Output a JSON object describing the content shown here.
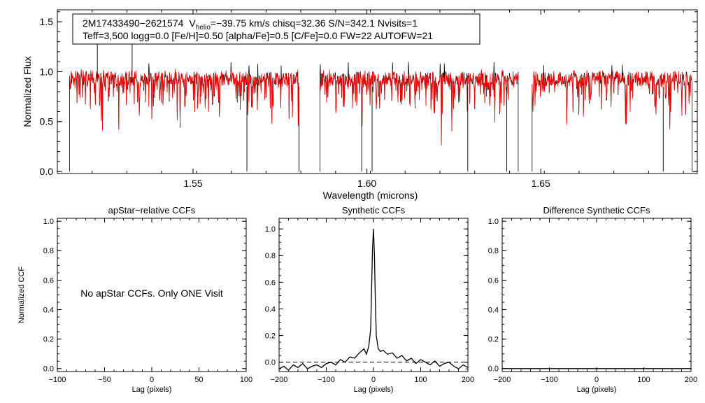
{
  "chart_data": [
    {
      "type": "line",
      "id": "spectrum",
      "xlabel": "Wavelength (microns)",
      "ylabel": "Normalized Flux",
      "xlim": [
        1.511,
        1.695
      ],
      "ylim": [
        -0.02,
        1.62
      ],
      "xticks": [
        1.55,
        1.6,
        1.65
      ],
      "xtick_labels": [
        "1.55",
        "1.60",
        "1.65"
      ],
      "yticks": [
        0.0,
        0.5,
        1.0,
        1.5
      ],
      "ytick_labels": [
        "0.0",
        "0.5",
        "1.0",
        "1.5"
      ],
      "detector_chips": [
        [
          1.5145,
          1.5805
        ],
        [
          1.5865,
          1.6435
        ],
        [
          1.6475,
          1.6935
        ]
      ],
      "series": [
        {
          "name": "observed",
          "color": "#000000"
        },
        {
          "name": "model",
          "color": "#ff0000"
        }
      ],
      "annotation": {
        "star_id": "2M17433490−2621574",
        "vhelio_v": "V",
        "vhelio_sub": "helio",
        "vhelio_rest": "=−39.75 km/s  chisq=32.36  S/N=342.1  Nvisits=1",
        "params_line": "Teff=3,500 logg=0.0 [Fe/H]=0.50 [alpha/Fe]=0.5 [C/Fe]=0.0 FW=22 AUTOFW=21"
      }
    },
    {
      "type": "line",
      "id": "apstar_ccf",
      "title": "apStar−relative CCFs",
      "xlabel": "Lag (pixels)",
      "ylabel": "Normalized CCF",
      "xlim": [
        -100,
        100
      ],
      "ylim": [
        -0.02,
        1.02
      ],
      "xticks": [
        -100,
        -50,
        0,
        50,
        100
      ],
      "xtick_labels": [
        "−100",
        "−50",
        "0",
        "50",
        "100"
      ],
      "yticks": [
        0.0,
        0.2,
        0.4,
        0.6,
        0.8,
        1.0
      ],
      "ytick_labels": [
        "0.0",
        "0.2",
        "0.4",
        "0.6",
        "0.8",
        "1.0"
      ],
      "message": "No apStar CCFs.  Only ONE Visit",
      "series": []
    },
    {
      "type": "line",
      "id": "synthetic_ccf",
      "title": "Synthetic CCFs",
      "xlabel": "Lag (pixels)",
      "xlim": [
        -200,
        200
      ],
      "ylim": [
        -0.07,
        1.08
      ],
      "xticks": [
        -200,
        -100,
        0,
        100,
        200
      ],
      "xtick_labels": [
        "−200",
        "−100",
        "0",
        "100",
        "200"
      ],
      "yticks": [
        0.0,
        0.2,
        0.4,
        0.6,
        0.8,
        1.0
      ],
      "ytick_labels": [
        "0.0",
        "0.2",
        "0.4",
        "0.6",
        "0.8",
        "1.0"
      ],
      "baseline": 0.0,
      "series": [
        {
          "name": "ccf",
          "x": [
            -200,
            -190,
            -180,
            -170,
            -160,
            -150,
            -140,
            -130,
            -120,
            -110,
            -100,
            -90,
            -80,
            -70,
            -60,
            -50,
            -40,
            -30,
            -20,
            -15,
            -10,
            -6,
            -4,
            -2,
            0,
            2,
            4,
            6,
            10,
            15,
            20,
            30,
            40,
            50,
            60,
            70,
            80,
            90,
            100,
            110,
            120,
            130,
            140,
            150,
            160,
            170,
            180,
            190,
            200
          ],
          "y": [
            -0.05,
            -0.03,
            -0.06,
            -0.02,
            -0.04,
            -0.01,
            -0.05,
            -0.03,
            -0.02,
            -0.04,
            -0.01,
            0.0,
            -0.02,
            0.02,
            0.0,
            0.04,
            0.03,
            0.07,
            0.1,
            0.06,
            0.12,
            0.25,
            0.55,
            0.85,
            1.0,
            0.8,
            0.45,
            0.2,
            0.1,
            0.08,
            0.09,
            0.06,
            0.07,
            0.03,
            0.05,
            0.01,
            0.03,
            -0.01,
            0.02,
            0.0,
            -0.02,
            0.01,
            -0.03,
            -0.01,
            0.0,
            -0.03,
            -0.05,
            -0.02,
            -0.04
          ]
        }
      ]
    },
    {
      "type": "line",
      "id": "difference_ccf",
      "title": "Difference Synthetic CCFs",
      "xlabel": "Lag (pixels)",
      "xlim": [
        -200,
        200
      ],
      "ylim": [
        -0.02,
        1.02
      ],
      "xticks": [
        -200,
        -100,
        0,
        100,
        200
      ],
      "xtick_labels": [
        "−200",
        "−100",
        "0",
        "100",
        "200"
      ],
      "yticks": [
        0.0,
        0.2,
        0.4,
        0.6,
        0.8,
        1.0
      ],
      "ytick_labels": [
        "0.0",
        "0.2",
        "0.4",
        "0.6",
        "0.8",
        "1.0"
      ],
      "series": [
        {
          "name": "ccf",
          "x": [
            -200,
            200
          ],
          "y": [
            0.0,
            0.0
          ]
        }
      ]
    }
  ]
}
